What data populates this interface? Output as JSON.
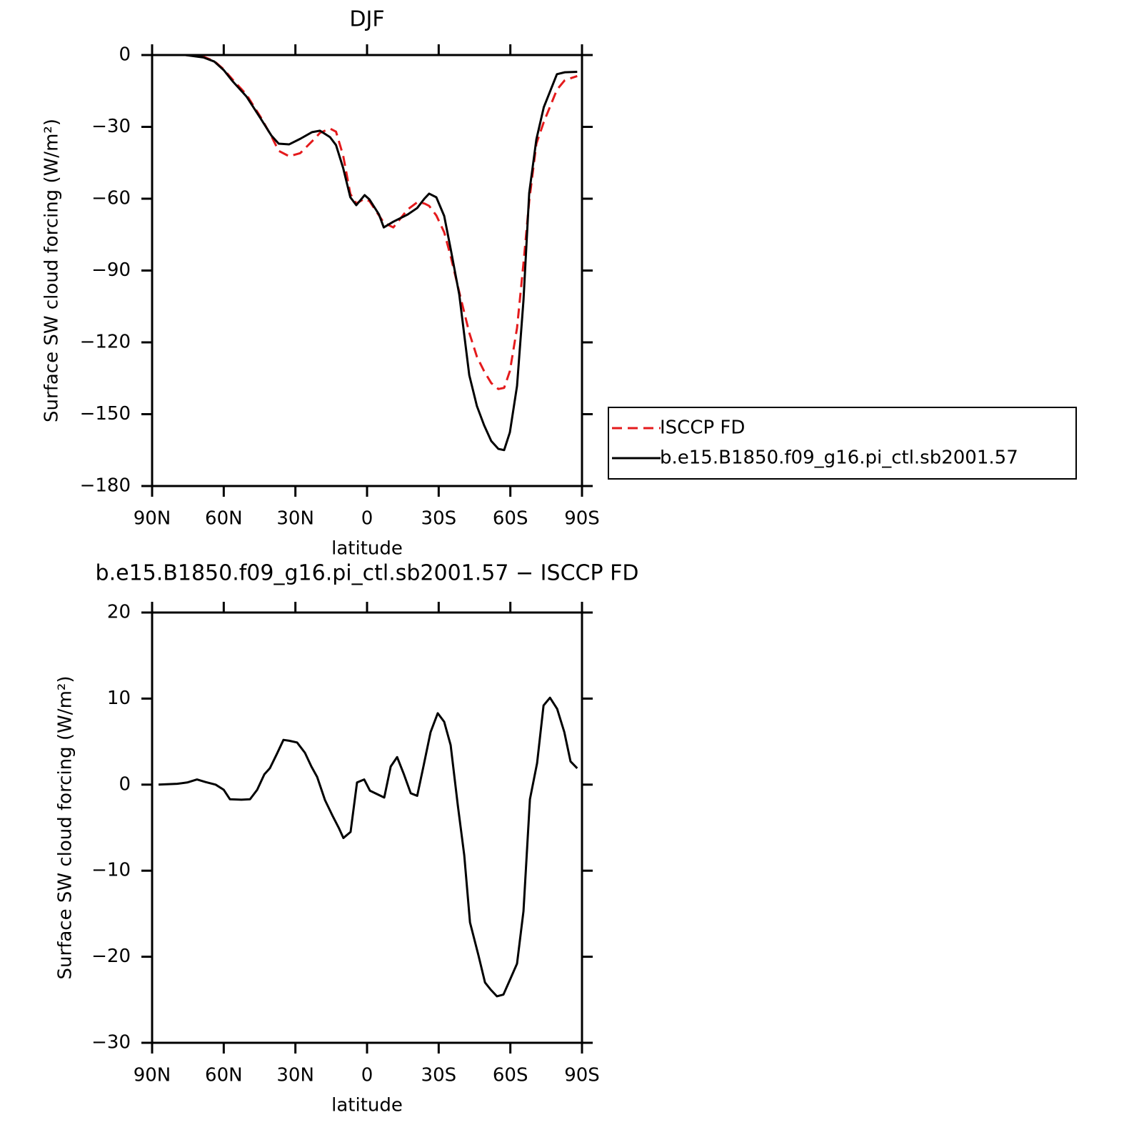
{
  "chart_data": [
    {
      "type": "line",
      "title": "DJF",
      "x_label": "latitude",
      "y_label": "Surface SW cloud forcing (W/m²)",
      "x": [
        76,
        68.5,
        64,
        60,
        56.5,
        50.5,
        44.5,
        40,
        37,
        32.6,
        28,
        23,
        19.7,
        15.5,
        13,
        10,
        7,
        4.5,
        1,
        -1,
        -5,
        -7,
        -11,
        -17,
        -21,
        -24,
        -26,
        -29,
        -32.3,
        -35,
        -38.6,
        -42.8,
        -46,
        -49,
        -52,
        -55,
        -57.4,
        -59.8,
        -62.8,
        -65.5,
        -67.9,
        -70.9,
        -74,
        -79.5,
        -82.8,
        -88
      ],
      "series": [
        {
          "name": "ISCCP FD",
          "color": "#e41a1c",
          "dashed": true,
          "values": [
            0,
            -0.7,
            -2.5,
            -6,
            -10,
            -16.5,
            -26,
            -34,
            -40,
            -42.3,
            -41,
            -36,
            -32.5,
            -30.7,
            -32,
            -42,
            -58,
            -62,
            -60,
            -61,
            -67,
            -70,
            -72,
            -64.5,
            -61.5,
            -62,
            -63,
            -67,
            -74,
            -84,
            -99,
            -116,
            -126,
            -132,
            -137,
            -139.5,
            -139,
            -132,
            -114,
            -87,
            -61,
            -37,
            -28,
            -14.5,
            -10.5,
            -8.8
          ]
        },
        {
          "name": "b.e15.B1850.f09_g16.pi_ctl.sb2001.57",
          "color": "#000000",
          "dashed": false,
          "values": [
            0,
            -1,
            -2.7,
            -6.3,
            -10.7,
            -17.3,
            -26.6,
            -33.7,
            -37,
            -37.3,
            -35,
            -32.2,
            -31.6,
            -34.3,
            -37.6,
            -47.2,
            -59.4,
            -62.7,
            -58.5,
            -60.3,
            -66.6,
            -72,
            -69.6,
            -66.6,
            -63.9,
            -60,
            -57.9,
            -59.4,
            -67.2,
            -80.9,
            -100,
            -133.7,
            -146.6,
            -154.6,
            -161.2,
            -164.5,
            -165,
            -157.6,
            -138.2,
            -102.4,
            -57.6,
            -35.2,
            -21.8,
            -8,
            -7.2,
            -7
          ]
        }
      ],
      "xlim": [
        90,
        -90
      ],
      "xticks": [
        {
          "value": 90,
          "label": "90N"
        },
        {
          "value": 60,
          "label": "60N"
        },
        {
          "value": 30,
          "label": "30N"
        },
        0,
        {
          "value": -30,
          "label": "30S"
        },
        {
          "value": -60,
          "label": "60S"
        },
        {
          "value": -90,
          "label": "90S"
        }
      ],
      "ylim": [
        -180,
        0
      ],
      "yticks": [
        0,
        {
          "value": -30,
          "label": "−30"
        },
        {
          "value": -60,
          "label": "−60"
        },
        {
          "value": -90,
          "label": "−90"
        },
        {
          "value": -120,
          "label": "−120"
        },
        {
          "value": -150,
          "label": "−150"
        },
        {
          "value": -180,
          "label": "−180"
        }
      ],
      "legend": "outside-right"
    },
    {
      "type": "line",
      "title": "b.e15.B1850.f09_g16.pi_ctl.sb2001.57 − ISCCP FD",
      "x_label": "latitude",
      "y_label": "Surface SW cloud forcing (W/m²)",
      "x": [
        87.3,
        79.5,
        75.3,
        71.2,
        67.6,
        63.4,
        60,
        57.4,
        52.6,
        49,
        46,
        43,
        40.7,
        37.7,
        35,
        32.6,
        29.3,
        26,
        23.3,
        20.9,
        17.6,
        14.3,
        11.7,
        9.9,
        6.9,
        4.2,
        1.2,
        -1.2,
        -7.2,
        -9.9,
        -12.6,
        -15.3,
        -18.3,
        -21,
        -23.6,
        -26.6,
        -29.6,
        -32.3,
        -35,
        -38,
        -40.7,
        -43.1,
        -46.7,
        -49.4,
        -51.7,
        -54.4,
        -57.1,
        -59.8,
        -62.8,
        -65.5,
        -68.2,
        -71.2,
        -73.9,
        -76.6,
        -79.6,
        -82.6,
        -85.2,
        -88
      ],
      "values": [
        0,
        0.1,
        0.25,
        0.6,
        0.3,
        0,
        -0.6,
        -1.7,
        -1.75,
        -1.7,
        -0.6,
        1.2,
        1.9,
        3.6,
        5.2,
        5.1,
        4.9,
        3.7,
        2.1,
        0.9,
        -1.8,
        -3.7,
        -5.1,
        -6.2,
        -5.5,
        0.25,
        0.6,
        -0.7,
        -1.5,
        2.1,
        3.2,
        1.3,
        -1,
        -1.3,
        2.1,
        6.1,
        8.3,
        7.3,
        4.6,
        -2.4,
        -8.2,
        -16,
        -19.9,
        -23,
        -23.8,
        -24.6,
        -24.4,
        -22.7,
        -20.8,
        -14.7,
        -1.7,
        2.5,
        9.2,
        10.1,
        8.8,
        6.1,
        2.7,
        1.9
      ],
      "color": "#000000",
      "xlim": [
        90,
        -90
      ],
      "xticks": [
        {
          "value": 90,
          "label": "90N"
        },
        {
          "value": 60,
          "label": "60N"
        },
        {
          "value": 30,
          "label": "30N"
        },
        0,
        {
          "value": -30,
          "label": "30S"
        },
        {
          "value": -60,
          "label": "60S"
        },
        {
          "value": -90,
          "label": "90S"
        }
      ],
      "ylim": [
        -30,
        20
      ],
      "yticks": [
        20,
        10,
        0,
        {
          "value": -10,
          "label": "−10"
        },
        {
          "value": -20,
          "label": "−20"
        },
        {
          "value": -30,
          "label": "−30"
        }
      ]
    }
  ]
}
